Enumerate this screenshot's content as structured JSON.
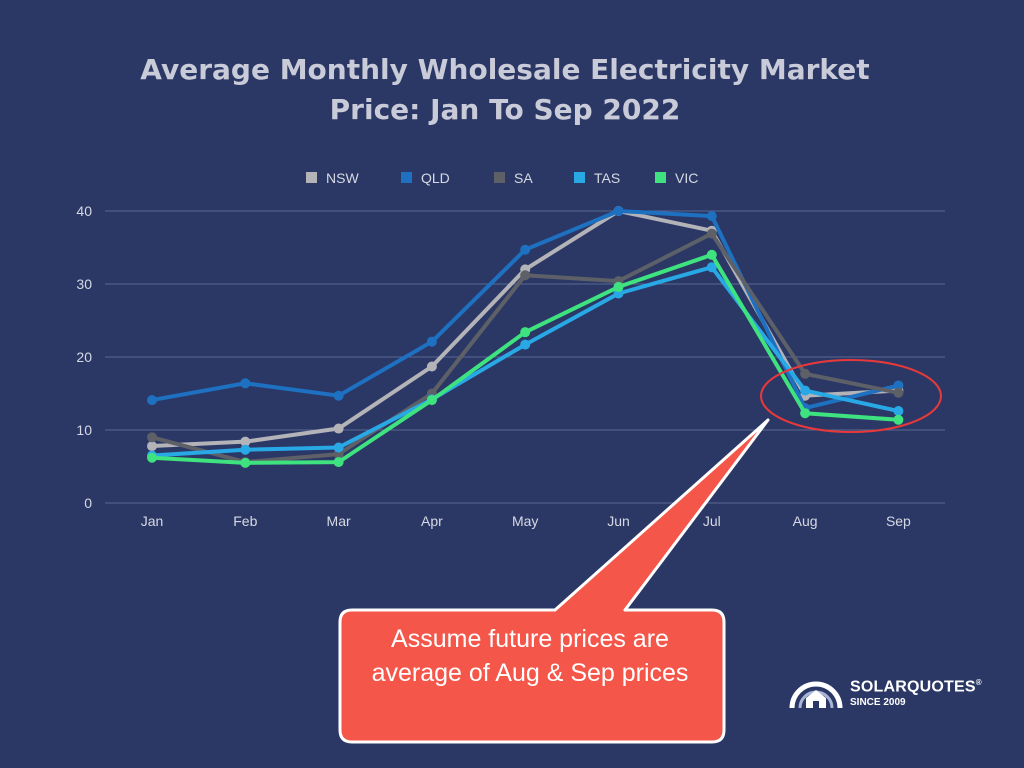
{
  "chart_data": {
    "type": "line",
    "title": "Average Monthly Wholesale Electricity Market Price: Jan To Sep 2022",
    "xlabel": "",
    "ylabel": "",
    "categories": [
      "Jan",
      "Feb",
      "Mar",
      "Apr",
      "May",
      "Jun",
      "Jul",
      "Aug",
      "Sep"
    ],
    "ylim": [
      0,
      40
    ],
    "yticks": [
      0,
      10,
      20,
      30,
      40
    ],
    "grid": true,
    "legend_position": "top-center",
    "series": [
      {
        "name": "NSW",
        "color": "#b3b3b8",
        "values": [
          7.8,
          8.4,
          10.2,
          18.7,
          32.0,
          40.0,
          37.3,
          14.7,
          15.4
        ]
      },
      {
        "name": "QLD",
        "color": "#1e70c1",
        "values": [
          14.1,
          16.4,
          14.7,
          22.1,
          34.7,
          40.0,
          39.3,
          13.0,
          16.1
        ]
      },
      {
        "name": "SA",
        "color": "#5e6068",
        "values": [
          9.0,
          5.6,
          6.7,
          15.0,
          31.2,
          30.4,
          36.9,
          17.7,
          15.1
        ]
      },
      {
        "name": "TAS",
        "color": "#29a8e6",
        "values": [
          6.5,
          7.3,
          7.6,
          14.2,
          21.7,
          28.7,
          32.3,
          15.4,
          12.6
        ]
      },
      {
        "name": "VIC",
        "color": "#3ee27f",
        "values": [
          6.2,
          5.5,
          5.6,
          14.1,
          23.4,
          29.6,
          34.0,
          12.3,
          11.4
        ]
      }
    ]
  },
  "annotation": {
    "text": "Assume future prices are average of Aug & Sep prices",
    "callout_color": "#f5564a",
    "circle_color": "#e8393a"
  },
  "logo": {
    "name": "SOLARQUOTES",
    "registered": "®",
    "tagline": "SINCE 2009"
  },
  "colors": {
    "background": "#2b3866",
    "gridline": "#5a6793",
    "text": "#d6d9e3"
  }
}
